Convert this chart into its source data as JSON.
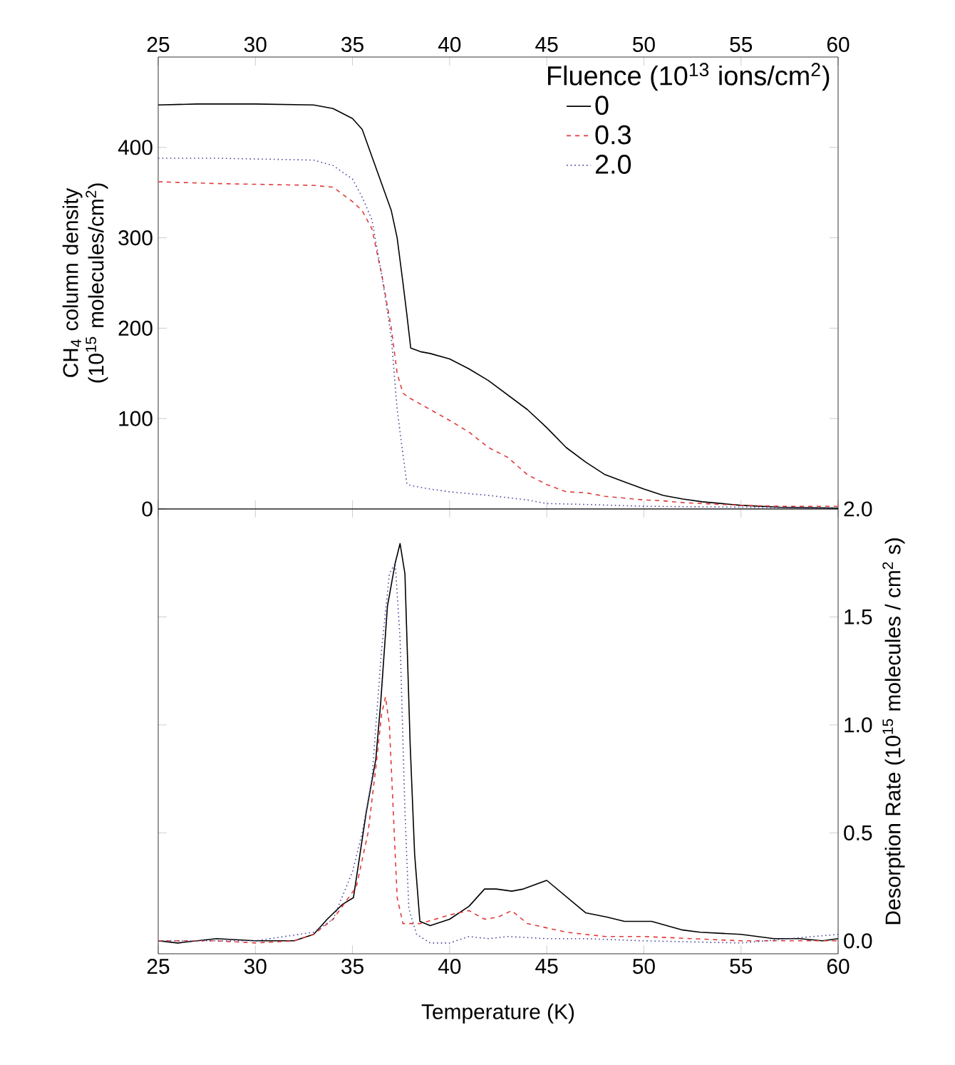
{
  "chart_data": [
    {
      "type": "line",
      "xlim": [
        25,
        60
      ],
      "xticks": [
        25,
        30,
        35,
        40,
        45,
        50,
        55,
        60
      ],
      "ylim": [
        0,
        500
      ],
      "yticks": [
        0,
        100,
        200,
        300,
        400
      ],
      "ylabel": "CH$_{4}$ column density (10$^{15}$ molecules/cm$^{2}$)",
      "legend": "top right",
      "legend_title": "Fluence (10$^{13}$ ions/cm$^{2}$)",
      "series": [
        {
          "name": "0",
          "color": "#000000",
          "line_style": "solid",
          "x": [
            25,
            27,
            30,
            33,
            34,
            35,
            35.5,
            36,
            36.5,
            37,
            37.3,
            37.6,
            37.8,
            38,
            38.5,
            39,
            40,
            41,
            42,
            43,
            44,
            45,
            46,
            47,
            48,
            49,
            50,
            51,
            52,
            53,
            55,
            57,
            60
          ],
          "values": [
            447,
            448,
            448,
            447,
            443,
            432,
            420,
            390,
            360,
            330,
            300,
            250,
            215,
            178,
            174,
            172,
            166,
            155,
            142,
            126,
            110,
            90,
            68,
            52,
            38,
            30,
            22,
            15,
            11,
            8,
            4,
            2,
            1
          ]
        },
        {
          "name": "0.3",
          "color": "#e03a3a",
          "line_style": "dashed",
          "x": [
            25,
            28,
            33,
            34,
            35,
            35.5,
            36,
            36.5,
            37,
            37.3,
            37.6,
            38,
            39,
            40,
            41,
            42,
            43,
            44,
            45,
            46,
            47,
            48,
            49,
            50,
            51,
            52,
            53,
            55,
            57,
            60
          ],
          "values": [
            362,
            360,
            358,
            356,
            340,
            330,
            310,
            260,
            200,
            150,
            128,
            122,
            110,
            98,
            85,
            68,
            57,
            38,
            27,
            19,
            18,
            14,
            12,
            10,
            9,
            7,
            6,
            4,
            3,
            3
          ]
        },
        {
          "name": "2.0",
          "color": "#4a4aa0",
          "line_style": "dotted",
          "x": [
            25,
            28,
            33,
            34,
            35,
            35.5,
            36,
            36.5,
            37,
            37.3,
            37.6,
            37.8,
            38,
            39,
            40,
            42,
            44,
            45,
            47,
            50,
            55,
            60
          ],
          "values": [
            388,
            388,
            386,
            380,
            365,
            345,
            320,
            260,
            190,
            110,
            60,
            28,
            26,
            22,
            19,
            15,
            10,
            6,
            5,
            3,
            2,
            1
          ]
        }
      ]
    },
    {
      "type": "line",
      "xlim": [
        25,
        60
      ],
      "xticks": [
        25,
        30,
        35,
        40,
        45,
        50,
        55,
        60
      ],
      "xlabel": "Temperature (K)",
      "y2lim": [
        -0.06,
        2.0
      ],
      "y2ticks": [
        {
          "value": 0,
          "label": "0.0"
        },
        {
          "value": 0.5,
          "label": "0.5"
        },
        {
          "value": 1,
          "label": "1.0"
        },
        {
          "value": 1.5,
          "label": "1.5"
        },
        {
          "value": 2,
          "label": "2.0"
        }
      ],
      "y2label": "Desorption Rate (10$^{15}$ molecules / cm$^{2}$ s)",
      "series": [
        {
          "color": "#000000",
          "line_style": "solid",
          "axis": "y2",
          "x": [
            25,
            26,
            28,
            30,
            32,
            33,
            33.7,
            34.5,
            35.05,
            35.3,
            35.7,
            36.2,
            36.45,
            36.8,
            37.2,
            37.45,
            37.7,
            37.97,
            38.2,
            38.47,
            39,
            40,
            41,
            41.8,
            42.4,
            43.2,
            43.8,
            45,
            45.8,
            46.6,
            47,
            48.1,
            49,
            50.4,
            52,
            52.9,
            55,
            56.7,
            58,
            59.2,
            60
          ],
          "values": [
            0.0,
            -0.01,
            0.01,
            0.0,
            0.0,
            0.03,
            0.1,
            0.17,
            0.2,
            0.35,
            0.59,
            0.84,
            1.1,
            1.55,
            1.75,
            1.84,
            1.7,
            0.91,
            0.4,
            0.09,
            0.07,
            0.1,
            0.16,
            0.24,
            0.24,
            0.23,
            0.24,
            0.28,
            0.22,
            0.16,
            0.13,
            0.11,
            0.09,
            0.09,
            0.05,
            0.04,
            0.03,
            0.01,
            0.01,
            0.0,
            0.01
          ]
        },
        {
          "color": "#e03a3a",
          "line_style": "dashed",
          "axis": "y2",
          "x": [
            25,
            28,
            30,
            32,
            33,
            34,
            35.2,
            35.8,
            36.2,
            36.5,
            36.7,
            36.9,
            37.1,
            37.3,
            37.6,
            38.5,
            40,
            41,
            41.8,
            42.5,
            43.2,
            44,
            45,
            46,
            48,
            50,
            55,
            60
          ],
          "values": [
            0.0,
            0.0,
            -0.01,
            0.0,
            0.03,
            0.1,
            0.25,
            0.5,
            0.8,
            1.05,
            1.13,
            1.0,
            0.6,
            0.2,
            0.08,
            0.08,
            0.12,
            0.14,
            0.1,
            0.11,
            0.14,
            0.08,
            0.06,
            0.04,
            0.02,
            0.02,
            0.0,
            0.0
          ]
        },
        {
          "color": "#4a4aa0",
          "line_style": "dotted",
          "axis": "y2",
          "x": [
            25,
            30,
            33,
            34,
            35,
            35.5,
            36,
            36.5,
            36.9,
            37.2,
            37.45,
            37.7,
            37.9,
            38.3,
            39,
            40,
            41,
            42,
            43,
            45,
            47,
            50,
            55,
            60
          ],
          "values": [
            0.0,
            0.0,
            0.04,
            0.1,
            0.32,
            0.5,
            0.75,
            1.35,
            1.7,
            1.75,
            1.4,
            0.6,
            0.15,
            0.03,
            -0.01,
            -0.01,
            0.02,
            0.01,
            0.02,
            0.01,
            0.01,
            0.0,
            -0.01,
            0.03
          ]
        }
      ]
    }
  ]
}
